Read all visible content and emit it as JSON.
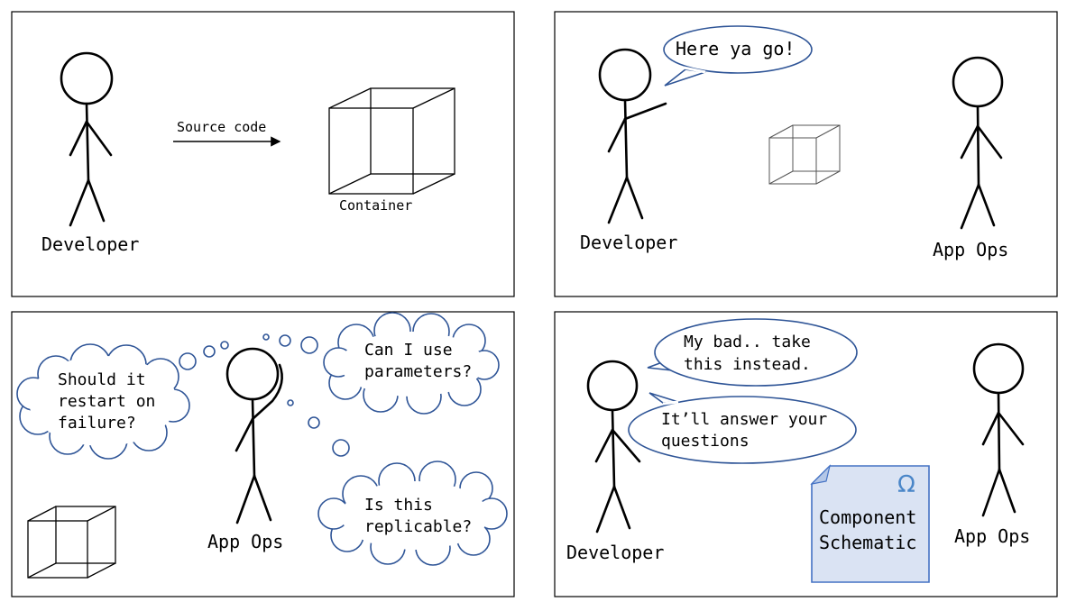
{
  "panels": {
    "p1": {
      "developer": "Developer",
      "arrow_label": "Source code",
      "container_label": "Container"
    },
    "p2": {
      "developer": "Developer",
      "speech": "Here ya go!",
      "appops": "App Ops"
    },
    "p3": {
      "appops": "App Ops",
      "thought_left": [
        "Should it",
        "restart on",
        "failure?"
      ],
      "thought_top_right": [
        "Can I use",
        "parameters?"
      ],
      "thought_bottom_right": [
        "Is this",
        "replicable?"
      ]
    },
    "p4": {
      "developer": "Developer",
      "appops": "App Ops",
      "speech_top": [
        "My bad.. take",
        "this instead."
      ],
      "speech_bottom": [
        "It’ll answer your",
        "questions"
      ],
      "document": {
        "title_line1": "Component",
        "title_line2": "Schematic",
        "symbol": "Ω",
        "icon": "document-icon"
      }
    }
  },
  "colors": {
    "bubble_border": "#2f5597",
    "doc_fill": "#dae3f3",
    "doc_border": "#4472c4",
    "omega": "#4a86c8"
  }
}
